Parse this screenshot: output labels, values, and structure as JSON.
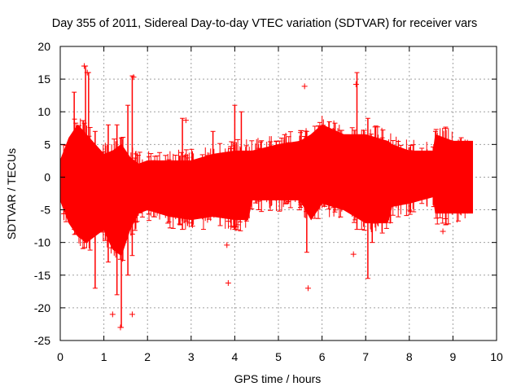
{
  "chart_data": {
    "type": "scatter",
    "title": "Day 355 of 2011, Sidereal Day-to-day VTEC variation (SDTVAR) for receiver vars",
    "xlabel": "GPS time / hours",
    "ylabel": "SDTVAR / TECUs",
    "xlim": [
      0,
      10
    ],
    "ylim": [
      -25,
      20
    ],
    "xticks": [
      "0",
      "1",
      "2",
      "3",
      "4",
      "5",
      "6",
      "7",
      "8",
      "9",
      "10"
    ],
    "yticks": [
      "20",
      "15",
      "10",
      "5",
      "0",
      "-5",
      "-10",
      "-15",
      "-20",
      "-25"
    ],
    "grid": true,
    "marker": "+",
    "color": "#ff0000",
    "series": [
      {
        "name": "SDTVAR",
        "note": "dense error-bar band approximated by upper/lower envelope",
        "envelope": [
          {
            "x": 0.0,
            "low": -3.5,
            "high": 2.5
          },
          {
            "x": 0.2,
            "low": -7.0,
            "high": 6.0
          },
          {
            "x": 0.4,
            "low": -9.0,
            "high": 8.0
          },
          {
            "x": 0.6,
            "low": -10.0,
            "high": 6.5
          },
          {
            "x": 0.8,
            "low": -9.0,
            "high": 5.0
          },
          {
            "x": 1.0,
            "low": -8.0,
            "high": 3.5
          },
          {
            "x": 1.2,
            "low": -11.0,
            "high": 4.0
          },
          {
            "x": 1.4,
            "low": -12.0,
            "high": 5.0
          },
          {
            "x": 1.6,
            "low": -8.0,
            "high": 3.0
          },
          {
            "x": 1.8,
            "low": -5.5,
            "high": 2.0
          },
          {
            "x": 2.0,
            "low": -5.0,
            "high": 2.5
          },
          {
            "x": 2.5,
            "low": -6.0,
            "high": 2.5
          },
          {
            "x": 3.0,
            "low": -6.5,
            "high": 2.5
          },
          {
            "x": 3.5,
            "low": -6.0,
            "high": 3.5
          },
          {
            "x": 4.0,
            "low": -6.5,
            "high": 4.0
          },
          {
            "x": 4.3,
            "low": -6.5,
            "high": 4.0
          },
          {
            "x": 4.4,
            "low": -3.5,
            "high": 4.0
          },
          {
            "x": 5.0,
            "low": -3.5,
            "high": 5.0
          },
          {
            "x": 5.5,
            "low": -3.5,
            "high": 5.5
          },
          {
            "x": 5.75,
            "low": -6.5,
            "high": 6.5
          },
          {
            "x": 6.0,
            "low": -4.0,
            "high": 8.0
          },
          {
            "x": 6.5,
            "low": -5.0,
            "high": 6.5
          },
          {
            "x": 7.0,
            "low": -7.0,
            "high": 6.5
          },
          {
            "x": 7.5,
            "low": -7.0,
            "high": 5.5
          },
          {
            "x": 7.6,
            "low": -4.5,
            "high": 5.0
          },
          {
            "x": 8.0,
            "low": -4.0,
            "high": 4.0
          },
          {
            "x": 8.55,
            "low": -3.0,
            "high": 4.0
          },
          {
            "x": 8.6,
            "low": -5.5,
            "high": 6.5
          },
          {
            "x": 9.0,
            "low": -5.5,
            "high": 5.5
          },
          {
            "x": 9.45,
            "low": -5.5,
            "high": 5.5
          }
        ],
        "spikes": [
          {
            "x": 0.32,
            "low": -8.0,
            "high": 13.0
          },
          {
            "x": 0.58,
            "low": -10.0,
            "high": 17.0
          },
          {
            "x": 0.65,
            "low": -9.0,
            "high": 16.0
          },
          {
            "x": 0.8,
            "low": -17.0,
            "high": 7.0
          },
          {
            "x": 1.1,
            "low": -13.0,
            "high": 8.0
          },
          {
            "x": 1.3,
            "low": -18.0,
            "high": 8.0
          },
          {
            "x": 1.4,
            "low": -23.0,
            "high": 6.0
          },
          {
            "x": 1.55,
            "low": -15.0,
            "high": 11.0
          },
          {
            "x": 1.65,
            "low": -12.0,
            "high": 15.5
          },
          {
            "x": 2.8,
            "low": -8.0,
            "high": 9.0
          },
          {
            "x": 3.5,
            "low": -3.0,
            "high": 7.0
          },
          {
            "x": 4.0,
            "low": -8.0,
            "high": 11.0
          },
          {
            "x": 4.15,
            "low": -4.0,
            "high": 10.0
          },
          {
            "x": 5.65,
            "low": -11.5,
            "high": 7.0
          },
          {
            "x": 6.8,
            "low": -8.0,
            "high": 16.0
          },
          {
            "x": 7.05,
            "low": -15.5,
            "high": 9.0
          },
          {
            "x": 7.15,
            "low": -10.0,
            "high": 5.0
          },
          {
            "x": 8.6,
            "low": -4.0,
            "high": 7.0
          }
        ],
        "outliers": [
          {
            "x": 0.55,
            "y": 17.0
          },
          {
            "x": 0.62,
            "y": 16.0
          },
          {
            "x": 1.2,
            "y": -21.0
          },
          {
            "x": 1.38,
            "y": -23.0
          },
          {
            "x": 1.68,
            "y": 15.3
          },
          {
            "x": 1.65,
            "y": -21.0
          },
          {
            "x": 2.88,
            "y": 8.7
          },
          {
            "x": 3.82,
            "y": -10.4
          },
          {
            "x": 3.85,
            "y": -16.2
          },
          {
            "x": 5.6,
            "y": 13.9
          },
          {
            "x": 5.68,
            "y": -17.0
          },
          {
            "x": 6.78,
            "y": 14.2
          },
          {
            "x": 6.72,
            "y": -11.8
          },
          {
            "x": 8.77,
            "y": -8.3
          }
        ]
      }
    ]
  }
}
